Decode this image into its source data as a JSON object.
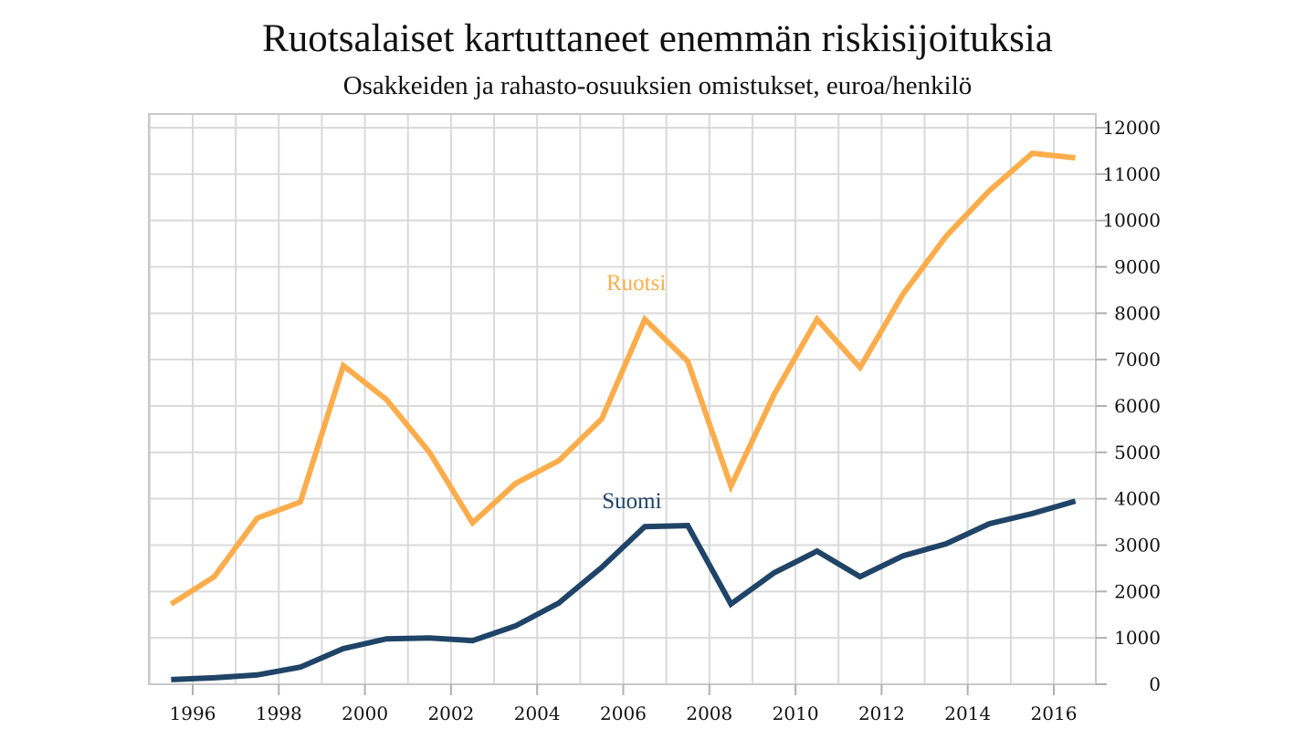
{
  "chart_data": {
    "type": "line",
    "title": "Ruotsalaiset kartuttaneet enemmän riskisijoituksia",
    "subtitle": "Osakkeiden ja rahasto-osuuksien omistukset, euroa/henkilö",
    "xlabel": "",
    "ylabel": "",
    "x": [
      1995.5,
      1996.5,
      1997.5,
      1998.5,
      1999.5,
      2000.5,
      2001.5,
      2002.5,
      2003.5,
      2004.5,
      2005.5,
      2006.5,
      2007.5,
      2008.5,
      2009.5,
      2010.5,
      2011.5,
      2012.5,
      2013.5,
      2014.5,
      2015.5,
      2016.5
    ],
    "xlim": [
      1995,
      2017.2
    ],
    "ylim": [
      0,
      12000
    ],
    "x_ticks": [
      1996,
      1998,
      2000,
      2002,
      2004,
      2006,
      2008,
      2010,
      2012,
      2014,
      2016
    ],
    "x_tick_labels": [
      "1996",
      "1998",
      "2000",
      "2002",
      "2004",
      "2006",
      "2008",
      "2010",
      "2012",
      "2014",
      "2016"
    ],
    "x_minor_grid": [
      1995,
      1997,
      1999,
      2001,
      2003,
      2005,
      2007,
      2009,
      2011,
      2013,
      2015,
      2017
    ],
    "y_ticks": [
      0,
      1000,
      2000,
      3000,
      4000,
      5000,
      6000,
      7000,
      8000,
      9000,
      10000,
      11000,
      12000
    ],
    "y_tick_labels": [
      "0",
      "1000",
      "2000",
      "3000",
      "4000",
      "5000",
      "6000",
      "7000",
      "8000",
      "9000",
      "10000",
      "11000",
      "12000"
    ],
    "y_axis_side": "right",
    "grid": true,
    "legend": "inline labels",
    "series": [
      {
        "name": "Ruotsi",
        "color": "#fbad4c",
        "label_at": [
          2006.3,
          8500
        ],
        "values": [
          1730,
          2320,
          3580,
          3930,
          6870,
          6140,
          5000,
          3480,
          4330,
          4820,
          5720,
          7870,
          6960,
          4270,
          6240,
          7870,
          6830,
          8420,
          9660,
          10640,
          11450,
          11350
        ]
      },
      {
        "name": "Suomi",
        "color": "#1f4467",
        "label_at": [
          2006.2,
          3800
        ],
        "values": [
          100,
          140,
          200,
          370,
          770,
          980,
          1000,
          940,
          1260,
          1750,
          2520,
          3400,
          3420,
          1730,
          2400,
          2870,
          2320,
          2770,
          3030,
          3460,
          3680,
          3950
        ]
      }
    ]
  }
}
